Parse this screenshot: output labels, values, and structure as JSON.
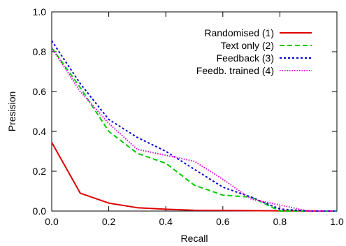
{
  "chart_data": {
    "type": "line",
    "xlabel": "Recall",
    "ylabel": "Presision",
    "xlim": [
      0.0,
      1.0
    ],
    "ylim": [
      0.0,
      1.0
    ],
    "x_ticks": [
      "0.0",
      "0.2",
      "0.4",
      "0.6",
      "0.8",
      "1.0"
    ],
    "y_ticks": [
      "0.0",
      "0.2",
      "0.4",
      "0.6",
      "0.8",
      "1.0"
    ],
    "grid": false,
    "legend_position": "top-right",
    "series": [
      {
        "name": "Randomised (1)",
        "color": "#dd0000",
        "dash": "solid",
        "x": [
          0.0,
          0.1,
          0.2,
          0.3,
          0.4,
          0.5,
          0.6,
          0.7,
          0.8,
          0.9,
          1.0
        ],
        "y": [
          0.345,
          0.09,
          0.04,
          0.017,
          0.009,
          0.004,
          0.003,
          0.002,
          0.001,
          0.001,
          0.0
        ]
      },
      {
        "name": "Text only (2)",
        "color": "#00cc00",
        "dash": "dashed",
        "x": [
          0.0,
          0.1,
          0.2,
          0.3,
          0.4,
          0.5,
          0.6,
          0.7,
          0.8,
          0.9,
          1.0
        ],
        "y": [
          0.82,
          0.62,
          0.4,
          0.29,
          0.24,
          0.13,
          0.08,
          0.07,
          0.0,
          0.0,
          0.0
        ]
      },
      {
        "name": "Feedback (3)",
        "color": "#0000cc",
        "dash": "dotted",
        "x": [
          0.0,
          0.1,
          0.2,
          0.3,
          0.4,
          0.5,
          0.6,
          0.7,
          0.8,
          0.9,
          1.0
        ],
        "y": [
          0.855,
          0.64,
          0.46,
          0.37,
          0.3,
          0.21,
          0.12,
          0.07,
          0.01,
          0.0,
          0.0
        ]
      },
      {
        "name": "Feedb. trained (4)",
        "color": "#dd00dd",
        "dash": "fine-dotted",
        "x": [
          0.0,
          0.1,
          0.2,
          0.3,
          0.4,
          0.5,
          0.6,
          0.7,
          0.8,
          0.9,
          1.0
        ],
        "y": [
          0.82,
          0.6,
          0.44,
          0.31,
          0.28,
          0.25,
          0.16,
          0.06,
          0.03,
          0.0,
          0.0
        ]
      }
    ]
  }
}
